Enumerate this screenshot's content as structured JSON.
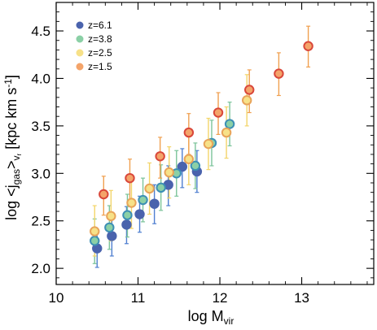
{
  "chart_data": {
    "type": "scatter",
    "xlim": [
      10,
      13.88
    ],
    "ylim": [
      1.83,
      4.8
    ],
    "x_ticks": [
      {
        "value": 10,
        "label": "10"
      },
      {
        "value": 11,
        "label": "11"
      },
      {
        "value": 12,
        "label": "12"
      },
      {
        "value": 13,
        "label": "13"
      }
    ],
    "y_ticks": [
      {
        "value": 2.0,
        "label": "2.0"
      },
      {
        "value": 2.5,
        "label": "2.5"
      },
      {
        "value": 3.0,
        "label": "3.0"
      },
      {
        "value": 3.5,
        "label": "3.5"
      },
      {
        "value": 4.0,
        "label": "4.0"
      },
      {
        "value": 4.5,
        "label": "4.5"
      }
    ],
    "xlabel": {
      "main": "log M",
      "sub": "vir"
    },
    "ylabel": {
      "pre": "log <j",
      "sub1": "gas",
      "mid": ">",
      "sub2": "v",
      "sub3": "r",
      "post": " [kpc km s",
      "sup": "-1",
      "end": "]"
    },
    "grid": false,
    "legend_position": "top-left",
    "series": [
      {
        "name": "z=6.1",
        "fill": "#4a63ad",
        "edge": "#4a63ad",
        "error_color": "#4f7fd0",
        "points": [
          {
            "x": 10.5,
            "y": 2.21,
            "lo": 2.01,
            "hi": 2.39
          },
          {
            "x": 10.68,
            "y": 2.34,
            "lo": 2.13,
            "hi": 2.54
          },
          {
            "x": 10.86,
            "y": 2.46,
            "lo": 2.26,
            "hi": 2.65
          },
          {
            "x": 11.02,
            "y": 2.57,
            "lo": 2.38,
            "hi": 2.76
          },
          {
            "x": 11.2,
            "y": 2.68,
            "lo": 2.47,
            "hi": 2.88
          },
          {
            "x": 11.37,
            "y": 2.88,
            "lo": 2.66,
            "hi": 3.08
          },
          {
            "x": 11.54,
            "y": 3.07,
            "lo": 2.85,
            "hi": 3.26
          },
          {
            "x": 11.72,
            "y": 3.02,
            "lo": 2.8,
            "hi": 3.24
          }
        ]
      },
      {
        "name": "z=3.8",
        "fill": "#8bd0a6",
        "edge": "#3c8fb5",
        "error_color": "#7cc49a",
        "points": [
          {
            "x": 10.47,
            "y": 2.29,
            "lo": 2.05,
            "hi": 2.52
          },
          {
            "x": 10.65,
            "y": 2.43,
            "lo": 2.2,
            "hi": 2.66
          },
          {
            "x": 10.87,
            "y": 2.56,
            "lo": 2.33,
            "hi": 2.78
          },
          {
            "x": 11.06,
            "y": 2.72,
            "lo": 2.49,
            "hi": 2.95
          },
          {
            "x": 11.28,
            "y": 2.85,
            "lo": 2.61,
            "hi": 3.09
          },
          {
            "x": 11.47,
            "y": 3.0,
            "lo": 2.76,
            "hi": 3.24
          },
          {
            "x": 11.7,
            "y": 3.08,
            "lo": 2.84,
            "hi": 3.32
          },
          {
            "x": 11.9,
            "y": 3.32,
            "lo": 3.08,
            "hi": 3.56
          },
          {
            "x": 12.12,
            "y": 3.52,
            "lo": 3.29,
            "hi": 3.75
          }
        ]
      },
      {
        "name": "z=2.5",
        "fill": "#f7e188",
        "edge": "#e8a45a",
        "error_color": "#f3d56a",
        "points": [
          {
            "x": 10.47,
            "y": 2.39,
            "lo": 2.13,
            "hi": 2.66
          },
          {
            "x": 10.67,
            "y": 2.55,
            "lo": 2.29,
            "hi": 2.82
          },
          {
            "x": 10.92,
            "y": 2.69,
            "lo": 2.42,
            "hi": 2.96
          },
          {
            "x": 11.14,
            "y": 2.84,
            "lo": 2.57,
            "hi": 3.11
          },
          {
            "x": 11.38,
            "y": 3.01,
            "lo": 2.74,
            "hi": 3.28
          },
          {
            "x": 11.62,
            "y": 3.15,
            "lo": 2.88,
            "hi": 3.42
          },
          {
            "x": 11.86,
            "y": 3.31,
            "lo": 3.04,
            "hi": 3.58
          },
          {
            "x": 12.08,
            "y": 3.43,
            "lo": 3.16,
            "hi": 3.7
          },
          {
            "x": 12.33,
            "y": 3.77,
            "lo": 3.5,
            "hi": 4.04
          }
        ]
      },
      {
        "name": "z=1.5",
        "fill": "#f4a46a",
        "edge": "#d9473a",
        "error_color": "#f0a050",
        "points": [
          {
            "x": 10.58,
            "y": 2.78,
            "lo": 2.56,
            "hi": 2.97
          },
          {
            "x": 10.9,
            "y": 2.95,
            "lo": 2.72,
            "hi": 3.15
          },
          {
            "x": 11.27,
            "y": 3.18,
            "lo": 2.95,
            "hi": 3.38
          },
          {
            "x": 11.62,
            "y": 3.43,
            "lo": 3.2,
            "hi": 3.63
          },
          {
            "x": 11.98,
            "y": 3.64,
            "lo": 3.41,
            "hi": 3.85
          },
          {
            "x": 12.36,
            "y": 3.88,
            "lo": 3.64,
            "hi": 4.09
          },
          {
            "x": 12.72,
            "y": 4.05,
            "lo": 3.82,
            "hi": 4.27
          },
          {
            "x": 13.08,
            "y": 4.34,
            "lo": 4.12,
            "hi": 4.55
          }
        ]
      }
    ]
  }
}
